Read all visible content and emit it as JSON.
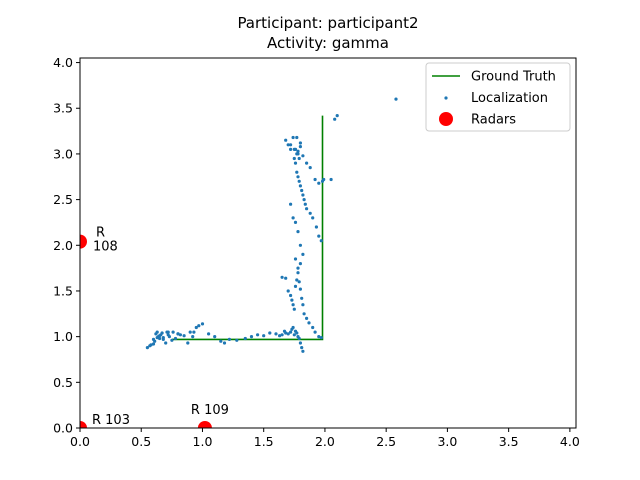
{
  "chart_data": {
    "type": "scatter",
    "title_line1": "Participant: participant2",
    "title_line2": "Activity: gamma",
    "xlabel": "",
    "ylabel": "",
    "xlim": [
      0,
      4.05
    ],
    "ylim": [
      0,
      4.05
    ],
    "xticks": [
      0.0,
      0.5,
      1.0,
      1.5,
      2.0,
      2.5,
      3.0,
      3.5,
      4.0
    ],
    "yticks": [
      0.0,
      0.5,
      1.0,
      1.5,
      2.0,
      2.5,
      3.0,
      3.5,
      4.0
    ],
    "tick_format": "0.0",
    "grid": false,
    "legend_position": "top-right",
    "legend": {
      "ground_truth": "Ground Truth",
      "localization": "Localization",
      "radars": "Radars"
    },
    "colors": {
      "ground_truth": "#008000",
      "localization": "#1f77b4",
      "radars": "#ff0000"
    },
    "ground_truth": {
      "x": [
        0.75,
        1.98,
        1.98
      ],
      "y": [
        0.97,
        0.97,
        3.42
      ]
    },
    "radars": [
      {
        "label_line1": "R",
        "label_line2": "108",
        "x": 0.0,
        "y": 2.04
      },
      {
        "label_line1": "R 103",
        "label_line2": "",
        "x": 0.0,
        "y": 0.0
      },
      {
        "label_line1": "R 109",
        "label_line2": "",
        "x": 1.02,
        "y": 0.0
      }
    ],
    "localization": {
      "x": [
        0.55,
        0.57,
        0.58,
        0.6,
        0.61,
        0.62,
        0.63,
        0.64,
        0.65,
        0.66,
        0.67,
        0.68,
        0.7,
        0.71,
        0.72,
        0.73,
        0.75,
        0.76,
        0.78,
        0.8,
        0.82,
        0.85,
        0.88,
        0.9,
        0.93,
        0.95,
        0.97,
        1.0,
        1.05,
        1.1,
        1.15,
        1.18,
        1.22,
        1.28,
        1.35,
        1.4,
        1.45,
        1.5,
        1.55,
        1.6,
        1.63,
        1.65,
        1.67,
        1.68,
        1.7,
        1.72,
        1.73,
        1.74,
        1.75,
        1.76,
        1.77,
        1.78,
        1.79,
        1.8,
        1.81,
        1.82,
        1.65,
        1.68,
        1.7,
        1.72,
        1.73,
        1.74,
        1.75,
        1.76,
        1.77,
        1.78,
        1.79,
        1.8,
        1.81,
        1.82,
        1.83,
        1.85,
        1.87,
        1.9,
        1.92,
        1.95,
        1.97,
        1.75,
        1.76,
        1.77,
        1.78,
        1.79,
        1.8,
        1.81,
        1.82,
        1.83,
        1.84,
        1.85,
        1.88,
        1.9,
        1.93,
        1.95,
        1.97,
        1.72,
        1.74,
        1.76,
        1.78,
        1.8,
        1.82,
        1.76,
        1.78,
        1.8,
        1.72,
        1.75,
        1.77,
        1.79,
        1.68,
        1.7,
        1.72,
        1.74,
        1.76,
        1.78,
        1.8,
        1.82,
        1.85,
        1.88,
        1.92,
        1.95,
        1.98,
        1.99,
        2.05,
        2.08,
        2.1,
        2.58,
        0.6,
        0.63,
        0.65,
        0.68,
        0.72,
        0.8,
        0.92,
        1.77,
        1.8,
        1.78
      ],
      "y": [
        0.88,
        0.9,
        0.91,
        0.92,
        0.95,
        1.03,
        1.05,
        1.0,
        0.98,
        1.02,
        1.04,
        0.97,
        0.93,
        1.05,
        1.02,
        1.0,
        0.96,
        1.05,
        0.98,
        1.03,
        1.02,
        1.01,
        0.93,
        1.05,
        1.05,
        1.1,
        1.12,
        1.14,
        1.03,
        1.0,
        0.95,
        0.93,
        0.97,
        0.96,
        0.98,
        1.0,
        1.02,
        1.01,
        1.04,
        1.03,
        1.01,
        1.02,
        1.06,
        1.04,
        1.03,
        1.05,
        1.08,
        1.1,
        1.02,
        1.06,
        1.04,
        1.0,
        0.98,
        0.93,
        0.88,
        0.84,
        1.65,
        1.64,
        1.5,
        1.45,
        1.4,
        1.35,
        1.3,
        1.55,
        1.62,
        1.7,
        1.6,
        1.52,
        1.42,
        1.35,
        1.25,
        1.2,
        1.15,
        1.1,
        1.05,
        1.0,
        0.99,
        2.95,
        2.9,
        2.8,
        2.75,
        2.7,
        2.65,
        2.6,
        2.55,
        2.5,
        2.45,
        2.4,
        2.35,
        2.3,
        2.2,
        2.1,
        2.05,
        2.45,
        2.3,
        2.25,
        2.15,
        2.0,
        1.9,
        1.85,
        1.75,
        1.8,
        3.1,
        3.05,
        3.0,
        2.95,
        3.15,
        3.1,
        3.05,
        3.18,
        3.05,
        3.0,
        3.08,
        2.98,
        2.9,
        2.85,
        2.72,
        2.68,
        2.7,
        2.72,
        2.72,
        3.38,
        3.42,
        3.6,
        0.97,
        0.99,
        1.01,
        0.99,
        1.05,
        1.03,
        1.0,
        3.18,
        3.12,
        3.03
      ]
    }
  }
}
